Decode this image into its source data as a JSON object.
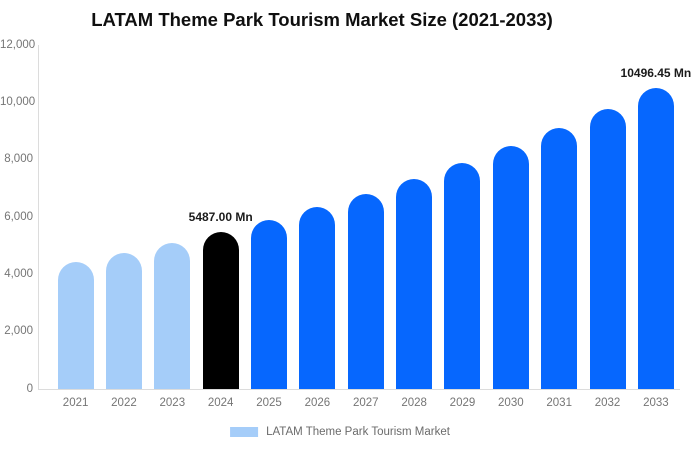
{
  "chart_data": {
    "type": "bar",
    "title": "LATAM Theme Park Tourism Market Size (2021-2033)",
    "categories": [
      "2021",
      "2022",
      "2023",
      "2024",
      "2025",
      "2026",
      "2027",
      "2028",
      "2029",
      "2030",
      "2031",
      "2032",
      "2033"
    ],
    "values": [
      4419,
      4750,
      5105,
      5487,
      5898,
      6339,
      6813,
      7323,
      7871,
      8460,
      9093,
      9773,
      10496.45
    ],
    "unit": "Mn",
    "ylim": [
      0,
      12000
    ],
    "y_ticks": [
      "0",
      "2,000",
      "4,000",
      "6,000",
      "8,000",
      "10,000",
      "12,000"
    ],
    "y_tick_values": [
      0,
      2000,
      4000,
      6000,
      8000,
      10000,
      12000
    ],
    "grid": false,
    "legend_position": "bottom",
    "data_labels": [
      {
        "category": "2024",
        "text": "5487.00 Mn"
      },
      {
        "category": "2033",
        "text": "10496.45 Mn"
      }
    ],
    "bar_color_roles": [
      "historical",
      "historical",
      "historical",
      "base",
      "forecast",
      "forecast",
      "forecast",
      "forecast",
      "forecast",
      "forecast",
      "forecast",
      "forecast",
      "forecast"
    ],
    "colors": {
      "historical": "#A5CDF9",
      "base": "#000000",
      "forecast": "#0667FE"
    }
  },
  "legend": {
    "label": "LATAM Theme Park Tourism Market",
    "swatch_color": "#A5CDF9"
  },
  "axes": {
    "label_color": "#757575",
    "line_color": "#dcdcdc"
  }
}
